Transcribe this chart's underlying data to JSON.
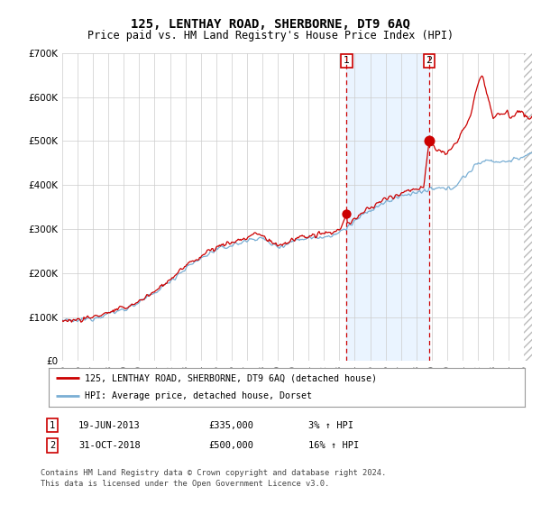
{
  "title": "125, LENTHAY ROAD, SHERBORNE, DT9 6AQ",
  "subtitle": "Price paid vs. HM Land Registry's House Price Index (HPI)",
  "title_fontsize": 10,
  "subtitle_fontsize": 8.5,
  "background_color": "#ffffff",
  "grid_color": "#cccccc",
  "hpi_line_color": "#7aafd4",
  "price_line_color": "#cc0000",
  "marker_color": "#cc0000",
  "sale1_date_num": 2013.47,
  "sale1_price": 335000,
  "sale2_date_num": 2018.83,
  "sale2_price": 500000,
  "shade_color": "#ddeeff",
  "legend_label_price": "125, LENTHAY ROAD, SHERBORNE, DT9 6AQ (detached house)",
  "legend_label_hpi": "HPI: Average price, detached house, Dorset",
  "footnote": "Contains HM Land Registry data © Crown copyright and database right 2024.\nThis data is licensed under the Open Government Licence v3.0.",
  "ylim": [
    0,
    700000
  ],
  "xlim_start": 1995.0,
  "xlim_end": 2025.5,
  "hpi_anchors": [
    [
      1995.0,
      93000
    ],
    [
      1995.5,
      90000
    ],
    [
      1996.0,
      92000
    ],
    [
      1996.5,
      95000
    ],
    [
      1997.0,
      98000
    ],
    [
      1997.5,
      103000
    ],
    [
      1998.0,
      108000
    ],
    [
      1998.5,
      112000
    ],
    [
      1999.0,
      118000
    ],
    [
      1999.5,
      125000
    ],
    [
      2000.0,
      133000
    ],
    [
      2000.5,
      143000
    ],
    [
      2001.0,
      155000
    ],
    [
      2001.5,
      168000
    ],
    [
      2002.0,
      182000
    ],
    [
      2002.5,
      196000
    ],
    [
      2003.0,
      210000
    ],
    [
      2003.5,
      222000
    ],
    [
      2004.0,
      233000
    ],
    [
      2004.5,
      244000
    ],
    [
      2005.0,
      252000
    ],
    [
      2005.5,
      258000
    ],
    [
      2006.0,
      263000
    ],
    [
      2006.5,
      268000
    ],
    [
      2007.0,
      273000
    ],
    [
      2007.5,
      280000
    ],
    [
      2008.0,
      278000
    ],
    [
      2008.5,
      268000
    ],
    [
      2009.0,
      260000
    ],
    [
      2009.5,
      265000
    ],
    [
      2010.0,
      273000
    ],
    [
      2010.5,
      278000
    ],
    [
      2011.0,
      280000
    ],
    [
      2011.5,
      282000
    ],
    [
      2012.0,
      283000
    ],
    [
      2012.5,
      286000
    ],
    [
      2013.0,
      292000
    ],
    [
      2013.47,
      300000
    ],
    [
      2013.5,
      305000
    ],
    [
      2014.0,
      318000
    ],
    [
      2014.5,
      330000
    ],
    [
      2015.0,
      342000
    ],
    [
      2015.5,
      352000
    ],
    [
      2016.0,
      360000
    ],
    [
      2016.5,
      368000
    ],
    [
      2017.0,
      375000
    ],
    [
      2017.5,
      380000
    ],
    [
      2018.0,
      383000
    ],
    [
      2018.5,
      385000
    ],
    [
      2018.83,
      388000
    ],
    [
      2019.0,
      390000
    ],
    [
      2019.5,
      392000
    ],
    [
      2020.0,
      390000
    ],
    [
      2020.5,
      398000
    ],
    [
      2021.0,
      415000
    ],
    [
      2021.5,
      432000
    ],
    [
      2022.0,
      448000
    ],
    [
      2022.5,
      458000
    ],
    [
      2023.0,
      455000
    ],
    [
      2023.5,
      452000
    ],
    [
      2024.0,
      455000
    ],
    [
      2024.5,
      460000
    ],
    [
      2025.0,
      465000
    ],
    [
      2025.5,
      468000
    ]
  ],
  "price_anchors": [
    [
      1995.0,
      95000
    ],
    [
      1995.5,
      92000
    ],
    [
      1996.0,
      94000
    ],
    [
      1996.5,
      97000
    ],
    [
      1997.0,
      100000
    ],
    [
      1997.5,
      106000
    ],
    [
      1998.0,
      110000
    ],
    [
      1998.5,
      115000
    ],
    [
      1999.0,
      120000
    ],
    [
      1999.5,
      128000
    ],
    [
      2000.0,
      136000
    ],
    [
      2000.5,
      147000
    ],
    [
      2001.0,
      158000
    ],
    [
      2001.5,
      172000
    ],
    [
      2002.0,
      186000
    ],
    [
      2002.5,
      200000
    ],
    [
      2003.0,
      215000
    ],
    [
      2003.5,
      228000
    ],
    [
      2004.0,
      238000
    ],
    [
      2004.5,
      250000
    ],
    [
      2005.0,
      258000
    ],
    [
      2005.5,
      265000
    ],
    [
      2006.0,
      270000
    ],
    [
      2006.5,
      275000
    ],
    [
      2007.0,
      280000
    ],
    [
      2007.5,
      290000
    ],
    [
      2008.0,
      285000
    ],
    [
      2008.5,
      272000
    ],
    [
      2009.0,
      262000
    ],
    [
      2009.5,
      268000
    ],
    [
      2010.0,
      276000
    ],
    [
      2010.5,
      282000
    ],
    [
      2011.0,
      283000
    ],
    [
      2011.5,
      286000
    ],
    [
      2012.0,
      288000
    ],
    [
      2012.5,
      292000
    ],
    [
      2013.0,
      298000
    ],
    [
      2013.47,
      335000
    ],
    [
      2013.5,
      310000
    ],
    [
      2014.0,
      322000
    ],
    [
      2014.5,
      336000
    ],
    [
      2015.0,
      348000
    ],
    [
      2015.5,
      358000
    ],
    [
      2016.0,
      367000
    ],
    [
      2016.5,
      375000
    ],
    [
      2017.0,
      382000
    ],
    [
      2017.5,
      388000
    ],
    [
      2018.0,
      392000
    ],
    [
      2018.5,
      396000
    ],
    [
      2018.83,
      500000
    ],
    [
      2019.0,
      490000
    ],
    [
      2019.5,
      480000
    ],
    [
      2020.0,
      470000
    ],
    [
      2020.5,
      490000
    ],
    [
      2021.0,
      520000
    ],
    [
      2021.5,
      560000
    ],
    [
      2022.0,
      630000
    ],
    [
      2022.3,
      650000
    ],
    [
      2022.6,
      600000
    ],
    [
      2022.9,
      570000
    ],
    [
      2023.0,
      555000
    ],
    [
      2023.3,
      565000
    ],
    [
      2023.6,
      560000
    ],
    [
      2023.9,
      570000
    ],
    [
      2024.0,
      560000
    ],
    [
      2024.3,
      555000
    ],
    [
      2024.6,
      565000
    ],
    [
      2024.9,
      570000
    ],
    [
      2025.0,
      555000
    ],
    [
      2025.5,
      550000
    ]
  ]
}
